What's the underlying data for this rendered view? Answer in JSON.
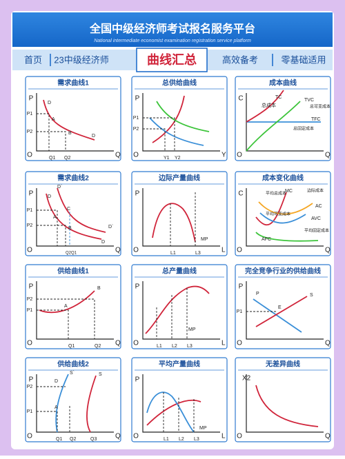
{
  "header": {
    "title": "全国中级经济师考试报名服务平台",
    "subtitle": "National intermediate economist examination registration service platform"
  },
  "nav": [
    "首页",
    "23中级经济师",
    "曲线汇总",
    "高效备考",
    "零基础适用"
  ],
  "cards": [
    {
      "title": "需求曲线1",
      "labels": [
        "P",
        "P1",
        "P2",
        "D",
        "A",
        "B",
        "D",
        "O",
        "Q1",
        "Q2",
        "Q"
      ]
    },
    {
      "title": "总供给曲线",
      "labels": [
        "P",
        "P1",
        "P2",
        "O",
        "Y1",
        "Y2",
        "Y"
      ]
    },
    {
      "title": "成本曲线",
      "labels": [
        "C",
        "TC",
        "总成本",
        "TVC",
        "总可变成本",
        "TFC",
        "总固定成本",
        "O",
        "Q"
      ]
    },
    {
      "title": "需求曲线2",
      "labels": [
        "P",
        "D`",
        "D",
        "C",
        "P1",
        "P2",
        "A",
        "B",
        "D`",
        "D",
        "O",
        "Q2Q1",
        "Q"
      ]
    },
    {
      "title": "边际产量曲线",
      "labels": [
        "P",
        "MP",
        "O",
        "L1",
        "L3",
        "L"
      ]
    },
    {
      "title": "成本变化曲线",
      "labels": [
        "C",
        "平均总成本",
        "MC",
        "边际成本",
        "AC",
        "平均可变成本",
        "AVC",
        "平均固定成本",
        "AFC",
        "O",
        "Q"
      ]
    },
    {
      "title": "供给曲线1",
      "labels": [
        "P",
        "P2",
        "P1",
        "B",
        "A",
        "O",
        "Q1",
        "Q2",
        "Q"
      ]
    },
    {
      "title": "总产量曲线",
      "labels": [
        "P",
        "MP",
        "O",
        "L1",
        "L2",
        "L3",
        "L"
      ]
    },
    {
      "title": "完全竞争行业的供给曲线",
      "labels": [
        "P",
        "P",
        "S",
        "P1",
        "E",
        "O",
        "Q"
      ]
    },
    {
      "title": "供给曲线2",
      "labels": [
        "P",
        "D",
        "S`",
        "S",
        "P2",
        "P1",
        "A",
        "O",
        "Q1",
        "Q2",
        "Q3",
        "Q"
      ]
    },
    {
      "title": "平均产量曲线",
      "labels": [
        "P",
        "MP",
        "O",
        "L1",
        "L2",
        "L3",
        "L"
      ]
    },
    {
      "title": "无差异曲线",
      "labels": [
        "X2",
        "O",
        "Q"
      ]
    }
  ]
}
